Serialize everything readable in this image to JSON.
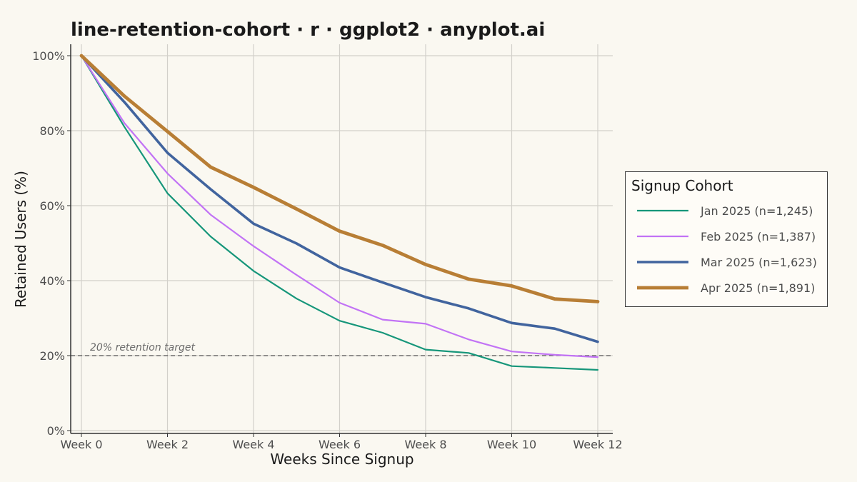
{
  "chart_data": {
    "type": "line",
    "title": "line-retention-cohort · r · ggplot2 · anyplot.ai",
    "xlabel": "Weeks Since Signup",
    "ylabel": "Retained Users (%)",
    "x": [
      0,
      1,
      2,
      3,
      4,
      5,
      6,
      7,
      8,
      9,
      10,
      11,
      12
    ],
    "x_tick_values": [
      0,
      2,
      4,
      6,
      8,
      10,
      12
    ],
    "x_tick_labels": [
      "Week 0",
      "Week 2",
      "Week 4",
      "Week 6",
      "Week 8",
      "Week 10",
      "Week 12"
    ],
    "y_tick_values": [
      0,
      20,
      40,
      60,
      80,
      100
    ],
    "y_tick_labels": [
      "0%",
      "20%",
      "40%",
      "60%",
      "80%",
      "100%"
    ],
    "xlim": [
      0,
      12
    ],
    "ylim": [
      0,
      100
    ],
    "grid": true,
    "legend_position": "right",
    "legend_title": "Signup Cohort",
    "reference_line": {
      "y": 20,
      "style": "dashed",
      "label": "20% retention target"
    },
    "series": [
      {
        "name": "Jan 2025 (n=1,245)",
        "color": "#16967A",
        "emphasis": "thin",
        "values": [
          100,
          81,
          63.3,
          51.8,
          42.6,
          35.2,
          29.3,
          26.1,
          21.6,
          20.7,
          17.2,
          16.7,
          16.2
        ]
      },
      {
        "name": "Feb 2025 (n=1,387)",
        "color": "#C273F5",
        "emphasis": "thin",
        "values": [
          100,
          82,
          68.6,
          57.6,
          49.2,
          41.5,
          34.1,
          29.6,
          28.5,
          24.3,
          21.1,
          20.2,
          19.6
        ]
      },
      {
        "name": "Mar 2025 (n=1,623)",
        "color": "#41649E",
        "emphasis": "medium",
        "values": [
          100,
          87.6,
          74.1,
          64.4,
          55.2,
          49.9,
          43.5,
          39.5,
          35.6,
          32.6,
          28.7,
          27.2,
          23.7
        ]
      },
      {
        "name": "Apr 2025 (n=1,891)",
        "color": "#B87E35",
        "emphasis": "thick",
        "values": [
          100,
          89.2,
          79.8,
          70.3,
          64.9,
          59.1,
          53.2,
          49.4,
          44.3,
          40.4,
          38.6,
          35.1,
          34.4
        ]
      }
    ]
  }
}
